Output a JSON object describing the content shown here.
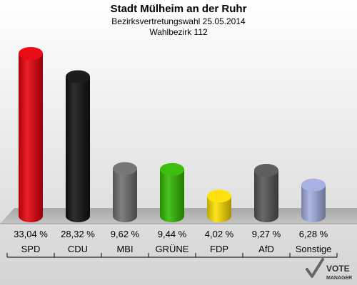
{
  "chart_data": {
    "type": "bar",
    "title": "Stadt Mülheim an der Ruhr",
    "subtitle": "Bezirksvertretungswahl 25.05.2014",
    "subtitle2": "Wahlbezirk 112",
    "categories": [
      "SPD",
      "CDU",
      "MBI",
      "GRÜNE",
      "FDP",
      "AfD",
      "Sonstige"
    ],
    "values": [
      33.04,
      28.32,
      9.62,
      9.44,
      4.02,
      9.27,
      6.28
    ],
    "value_labels": [
      "33,04 %",
      "28,32 %",
      "9,62 %",
      "9,44 %",
      "4,02 %",
      "9,27 %",
      "6,28 %"
    ],
    "colors": [
      "#e8000b",
      "#111111",
      "#6f6f6f",
      "#33bb00",
      "#ffe000",
      "#555555",
      "#a2aee0"
    ],
    "ylim": [
      0,
      33.04
    ]
  },
  "logo": {
    "line1": "VOTE",
    "line2": "MANAGER"
  }
}
